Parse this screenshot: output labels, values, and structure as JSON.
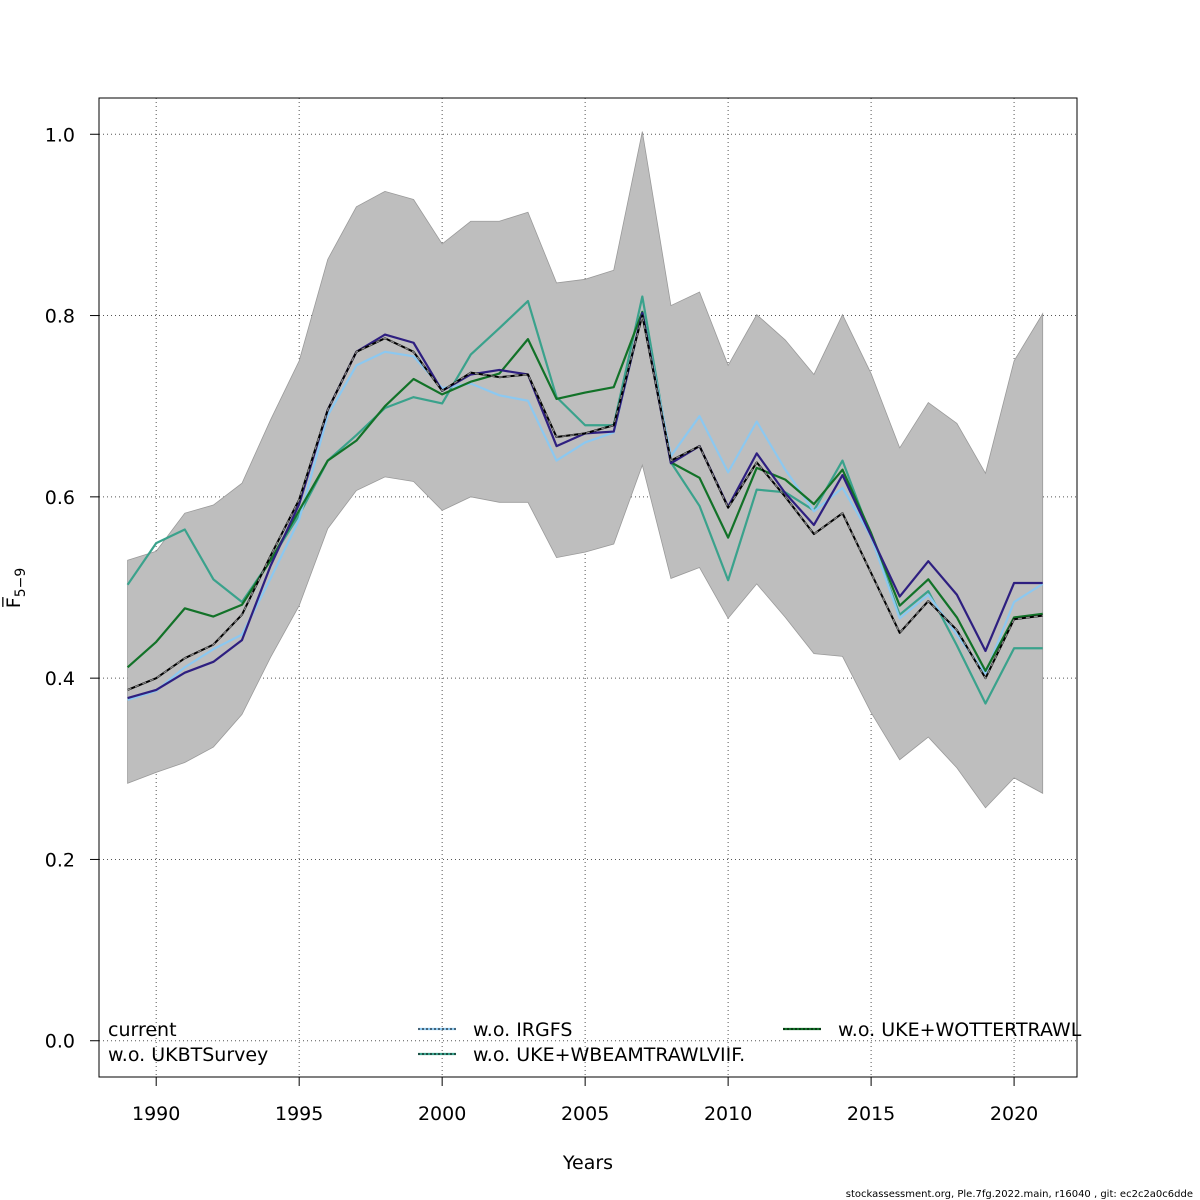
{
  "chart_data": {
    "type": "line",
    "xlabel": "Years",
    "ylabel": "F̅",
    "ylabel_sub": "5−9",
    "xlim": [
      1988,
      2022.2
    ],
    "ylim": [
      -0.04,
      1.04
    ],
    "x_ticks": [
      1990,
      1995,
      2000,
      2005,
      2010,
      2015,
      2020
    ],
    "x_tick_labels": [
      "1990",
      "1995",
      "2000",
      "2005",
      "2010",
      "2015",
      "2020"
    ],
    "y_ticks": [
      0.0,
      0.2,
      0.4,
      0.6,
      0.8,
      1.0
    ],
    "y_tick_labels": [
      "0.0",
      "0.2",
      "0.4",
      "0.6",
      "0.8",
      "1.0"
    ],
    "grid": true,
    "legend_position": "bottom",
    "x": [
      1989,
      1990,
      1991,
      1992,
      1993,
      1994,
      1995,
      1996,
      1997,
      1998,
      1999,
      2000,
      2001,
      2002,
      2003,
      2004,
      2005,
      2006,
      2007,
      2008,
      2009,
      2010,
      2011,
      2012,
      2013,
      2014,
      2015,
      2016,
      2017,
      2018,
      2019,
      2020,
      2021
    ],
    "band": {
      "color": "#bebebe",
      "upper": [
        0.53,
        0.54,
        0.582,
        0.591,
        0.615,
        0.685,
        0.75,
        0.862,
        0.92,
        0.937,
        0.928,
        0.879,
        0.904,
        0.904,
        0.914,
        0.836,
        0.84,
        0.85,
        1.003,
        0.811,
        0.826,
        0.745,
        0.801,
        0.773,
        0.735,
        0.801,
        0.736,
        0.654,
        0.704,
        0.681,
        0.626,
        0.75,
        0.802
      ],
      "lower": [
        0.284,
        0.296,
        0.307,
        0.324,
        0.36,
        0.423,
        0.48,
        0.565,
        0.607,
        0.622,
        0.617,
        0.585,
        0.6,
        0.594,
        0.594,
        0.533,
        0.539,
        0.548,
        0.635,
        0.51,
        0.522,
        0.466,
        0.504,
        0.467,
        0.427,
        0.424,
        0.362,
        0.31,
        0.335,
        0.301,
        0.257,
        0.29,
        0.273
      ]
    },
    "series": [
      {
        "name": "current",
        "color": "#000000",
        "dashed": false,
        "width": 2,
        "values": [
          0.387,
          0.4,
          0.422,
          0.437,
          0.47,
          0.535,
          0.597,
          0.696,
          0.76,
          0.775,
          0.76,
          0.717,
          0.737,
          0.732,
          0.735,
          0.666,
          0.67,
          0.679,
          0.8,
          0.64,
          0.656,
          0.588,
          0.638,
          0.6,
          0.559,
          0.582,
          0.516,
          0.45,
          0.485,
          0.453,
          0.4,
          0.465,
          0.469
        ]
      },
      {
        "name": "w.o. UKBTSurvey",
        "color": "#2e1f80",
        "dashed": false,
        "width": 2.2,
        "values": [
          0.378,
          0.387,
          0.406,
          0.418,
          0.442,
          0.524,
          0.592,
          0.696,
          0.76,
          0.779,
          0.77,
          0.717,
          0.735,
          0.74,
          0.735,
          0.656,
          0.67,
          0.672,
          0.803,
          0.637,
          0.656,
          0.589,
          0.648,
          0.604,
          0.569,
          0.624,
          0.557,
          0.49,
          0.529,
          0.492,
          0.43,
          0.505,
          0.505
        ]
      },
      {
        "name": "w.o. IRGFS",
        "color": "#8cc8f0",
        "dashed": false,
        "width": 2.2,
        "values": [
          0.376,
          0.386,
          0.412,
          0.432,
          0.448,
          0.51,
          0.575,
          0.69,
          0.745,
          0.76,
          0.755,
          0.72,
          0.725,
          0.712,
          0.706,
          0.64,
          0.66,
          0.671,
          0.804,
          0.645,
          0.689,
          0.627,
          0.683,
          0.63,
          0.584,
          0.61,
          0.556,
          0.466,
          0.492,
          0.448,
          0.405,
          0.484,
          0.504
        ]
      },
      {
        "name": "w.o. UKE+WBEAMTRAWLVIIF.",
        "color": "#3aa28c",
        "dashed": false,
        "width": 2.2,
        "values": [
          0.503,
          0.549,
          0.564,
          0.509,
          0.484,
          0.53,
          0.58,
          0.64,
          0.668,
          0.698,
          0.71,
          0.703,
          0.757,
          0.786,
          0.816,
          0.71,
          0.679,
          0.679,
          0.821,
          0.638,
          0.59,
          0.508,
          0.608,
          0.605,
          0.585,
          0.64,
          0.556,
          0.47,
          0.496,
          0.436,
          0.372,
          0.433,
          0.433
        ]
      },
      {
        "name": "w.o. UKE+WOTTERTRAWL",
        "color": "#127228",
        "dashed": false,
        "width": 2.2,
        "values": [
          0.412,
          0.44,
          0.477,
          0.468,
          0.481,
          0.53,
          0.585,
          0.64,
          0.662,
          0.7,
          0.73,
          0.713,
          0.727,
          0.736,
          0.774,
          0.708,
          0.715,
          0.721,
          0.804,
          0.638,
          0.621,
          0.555,
          0.632,
          0.619,
          0.592,
          0.63,
          0.56,
          0.48,
          0.509,
          0.467,
          0.408,
          0.467,
          0.471
        ]
      }
    ],
    "overlay_dashed": {
      "color": "#8a8a8a",
      "series_index": 0
    },
    "legend": [
      {
        "label": "current",
        "color": "#000000",
        "line": false,
        "col": 0,
        "row": 0
      },
      {
        "label": "w.o. UKBTSurvey",
        "color": "#2e1f80",
        "line": false,
        "col": 0,
        "row": 1
      },
      {
        "label": "w.o. IRGFS",
        "color": "#8cc8f0",
        "line": true,
        "col": 1,
        "row": 0
      },
      {
        "label": "w.o. UKE+WBEAMTRAWLVIIF.",
        "color": "#3aa28c",
        "line": true,
        "col": 1,
        "row": 1
      },
      {
        "label": "w.o. UKE+WOTTERTRAWL",
        "color": "#127228",
        "line": true,
        "col": 2,
        "row": 0
      }
    ]
  },
  "footer": "stockassessment.org, Ple.7fg.2022.main, r16040 , git: ec2c2a0c6dde"
}
